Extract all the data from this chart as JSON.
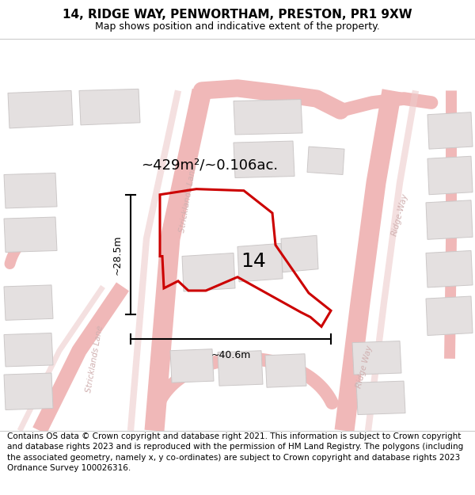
{
  "title": "14, RIDGE WAY, PENWORTHAM, PRESTON, PR1 9XW",
  "subtitle": "Map shows position and indicative extent of the property.",
  "footer": "Contains OS data © Crown copyright and database right 2021. This information is subject to Crown copyright and database rights 2023 and is reproduced with the permission of HM Land Registry. The polygons (including the associated geometry, namely x, y co-ordinates) are subject to Crown copyright and database rights 2023 Ordnance Survey 100026316.",
  "area_label": "~429m²/~0.106ac.",
  "width_label": "~40.6m",
  "height_label": "~28.5m",
  "number_label": "14",
  "map_bg": "#f2f0f0",
  "road_color": "#f0b8b8",
  "road_color2": "#eecccc",
  "building_fill": "#e4e0e0",
  "building_edge": "#ccc8c8",
  "highlight_color": "#cc0000",
  "title_fontsize": 11,
  "subtitle_fontsize": 9,
  "footer_fontsize": 7.5,
  "area_fontsize": 13,
  "number_fontsize": 18,
  "measure_fontsize": 9,
  "road_label_color": "#d0b0b0",
  "road_label_size": 7.5
}
